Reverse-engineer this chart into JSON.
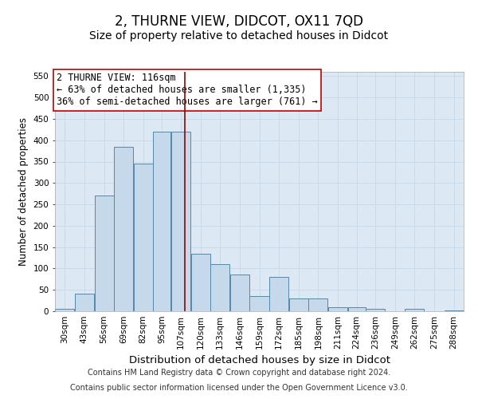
{
  "title": "2, THURNE VIEW, DIDCOT, OX11 7QD",
  "subtitle": "Size of property relative to detached houses in Didcot",
  "xlabel": "Distribution of detached houses by size in Didcot",
  "ylabel": "Number of detached properties",
  "footer_line1": "Contains HM Land Registry data © Crown copyright and database right 2024.",
  "footer_line2": "Contains public sector information licensed under the Open Government Licence v3.0.",
  "annotation_text": "2 THURNE VIEW: 116sqm\n← 63% of detached houses are smaller (1,335)\n36% of semi-detached houses are larger (761) →",
  "bar_labels": [
    "30sqm",
    "43sqm",
    "56sqm",
    "69sqm",
    "82sqm",
    "95sqm",
    "107sqm",
    "120sqm",
    "133sqm",
    "146sqm",
    "159sqm",
    "172sqm",
    "185sqm",
    "198sqm",
    "211sqm",
    "224sqm",
    "236sqm",
    "249sqm",
    "262sqm",
    "275sqm",
    "288sqm"
  ],
  "bar_values": [
    5,
    42,
    270,
    385,
    345,
    420,
    420,
    135,
    110,
    85,
    35,
    80,
    30,
    30,
    10,
    10,
    5,
    0,
    5,
    0,
    2
  ],
  "bin_edges": [
    30,
    43,
    56,
    69,
    82,
    95,
    107,
    120,
    133,
    146,
    159,
    172,
    185,
    198,
    211,
    224,
    236,
    249,
    262,
    275,
    288,
    301
  ],
  "vline_x": 116,
  "bar_face_color": "#c6d9ea",
  "bar_edge_color": "#5588aa",
  "vline_color": "#990000",
  "annotation_box_facecolor": "#ffffff",
  "annotation_box_edgecolor": "#bb0000",
  "ylim": [
    0,
    560
  ],
  "yticks": [
    0,
    50,
    100,
    150,
    200,
    250,
    300,
    350,
    400,
    450,
    500,
    550
  ],
  "grid_color": "#c8d8e8",
  "plot_bg_color": "#dce8f4",
  "fig_bg_color": "#ffffff",
  "title_fontsize": 12,
  "subtitle_fontsize": 10,
  "xlabel_fontsize": 9.5,
  "ylabel_fontsize": 8.5,
  "tick_fontsize": 7.5,
  "annotation_fontsize": 8.5,
  "footer_fontsize": 7
}
